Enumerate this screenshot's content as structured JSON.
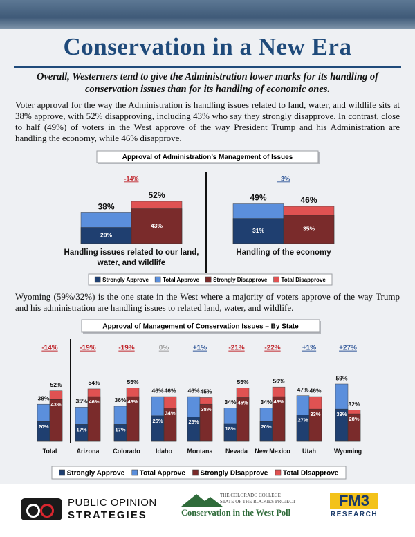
{
  "title": "Conservation in a New Era",
  "subtitle": "Overall, Westerners tend to give the Administration lower marks for its handling of conservation issues than for its handling of economic ones.",
  "paragraphs": [
    "Voter approval for the way the Administration is handling issues related to land, water, and wildlife sits at 38% approve, with 52% disapproving, including 43% who say they strongly disapprove. In contrast, close to half (49%) of voters in the West approve of the way President Trump and his Administration are handling the economy, while 46% disapprove.",
    "Wyoming (59%/32%) is the one state in the West where a majority of voters approve of the way Trump and his administration are handling issues to related land, water, and wildlife."
  ],
  "chart_data": [
    {
      "type": "bar",
      "title": "Approval of Administration’s Management of Issues",
      "categories": [
        "Handling issues related to  our land, water, and wildlife",
        "Handling of the economy"
      ],
      "net_values": [
        -14,
        3
      ],
      "net_labels": [
        "-14%",
        "+3%"
      ],
      "series": [
        {
          "name": "Strongly Approve",
          "color": "#1f3f70",
          "values": [
            20,
            31
          ],
          "value_labels": [
            "20%",
            "31%"
          ]
        },
        {
          "name": "Total Approve",
          "color": "#5b8fdc",
          "values": [
            38,
            49
          ],
          "value_labels": [
            "38%",
            "49%"
          ]
        },
        {
          "name": "Strongly Disapprove",
          "color": "#7a2b2b",
          "values": [
            43,
            35
          ],
          "value_labels": [
            "43%",
            "35%"
          ]
        },
        {
          "name": "Total Disapprove",
          "color": "#e05252",
          "values": [
            52,
            46
          ],
          "value_labels": [
            "52%",
            "46%"
          ]
        }
      ]
    },
    {
      "type": "bar",
      "title": "Approval of Management of Conservation Issues – By State",
      "categories": [
        "Total",
        "Arizona",
        "Colorado",
        "Idaho",
        "Montana",
        "Nevada",
        "New Mexico",
        "Utah",
        "Wyoming"
      ],
      "net_values": [
        -14,
        -19,
        -19,
        0,
        1,
        -21,
        -22,
        1,
        27
      ],
      "net_labels": [
        "-14%",
        "-19%",
        "-19%",
        "0%",
        "+1%",
        "-21%",
        "-22%",
        "+1%",
        "+27%"
      ],
      "series": [
        {
          "name": "Strongly Approve",
          "color": "#1f3f70",
          "values": [
            20,
            17,
            17,
            26,
            25,
            18,
            20,
            27,
            33
          ],
          "value_labels": [
            "20%",
            "17%",
            "17%",
            "26%",
            "25%",
            "18%",
            "20%",
            "27%",
            "33%"
          ]
        },
        {
          "name": "Total Approve",
          "color": "#5b8fdc",
          "values": [
            38,
            35,
            36,
            46,
            46,
            34,
            34,
            47,
            59
          ],
          "value_labels": [
            "38%",
            "35%",
            "36%",
            "46%",
            "46%",
            "34%",
            "34%",
            "47%",
            "59%"
          ]
        },
        {
          "name": "Strongly Disapprove",
          "color": "#7a2b2b",
          "values": [
            43,
            46,
            46,
            34,
            38,
            45,
            46,
            33,
            28
          ],
          "value_labels": [
            "43%",
            "46%",
            "46%",
            "34%",
            "38%",
            "45%",
            "46%",
            "33%",
            "28%"
          ]
        },
        {
          "name": "Total Disapprove",
          "color": "#e05252",
          "values": [
            52,
            54,
            55,
            46,
            45,
            55,
            56,
            46,
            32
          ],
          "value_labels": [
            "52%",
            "54%",
            "55%",
            "46%",
            "45%",
            "55%",
            "56%",
            "46%",
            "32%"
          ]
        }
      ]
    }
  ],
  "footer": {
    "left": [
      "PUBLIC OPINION",
      "STRATEGIES"
    ],
    "center": [
      "THE COLORADO COLLEGE",
      "STATE OF THE ROCKIES PROJECT",
      "Conservation in the West Poll"
    ],
    "right": [
      "FM3",
      "RESEARCH"
    ]
  }
}
